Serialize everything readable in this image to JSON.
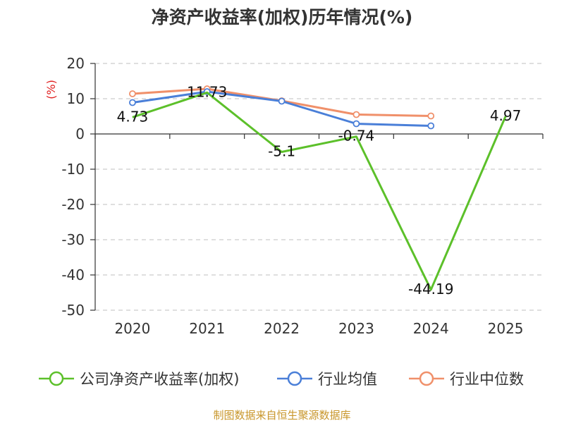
{
  "chart_data": {
    "type": "line",
    "title": "净资产收益率(加权)历年情况(%)",
    "ylabel": "(%)",
    "xlabel": "",
    "categories": [
      "2020",
      "2021",
      "2022",
      "2023",
      "2024",
      "2025"
    ],
    "ylim": [
      -50,
      20
    ],
    "yticks": [
      20,
      10,
      0,
      -10,
      -20,
      -30,
      -40,
      -50
    ],
    "grid": true,
    "legend_position": "bottom",
    "series": [
      {
        "name": "公司净资产收益率(加权)",
        "color": "#5cc02a",
        "values": [
          4.73,
          11.73,
          -5.1,
          -0.74,
          -44.19,
          4.97
        ],
        "labels": [
          "4.73",
          "11.73",
          "-5.1",
          "-0.74",
          "-44.19",
          "4.97"
        ]
      },
      {
        "name": "行业均值",
        "color": "#4a7fd8",
        "values": [
          8.9,
          12.0,
          9.3,
          2.9,
          2.3,
          null
        ]
      },
      {
        "name": "行业中位数",
        "color": "#f0906a",
        "values": [
          11.4,
          12.8,
          9.4,
          5.5,
          5.1,
          null
        ]
      }
    ],
    "source": "制图数据来自恒生聚源数据库"
  }
}
